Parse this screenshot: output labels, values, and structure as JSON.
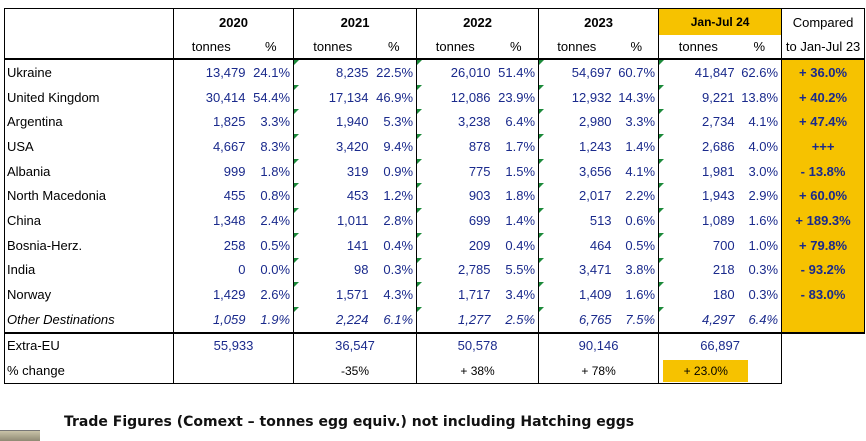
{
  "headers": {
    "years": [
      "2020",
      "2021",
      "2022",
      "2023",
      "Jan-Jul 24"
    ],
    "sub_tonnes": "tonnes",
    "sub_pct": "%",
    "compared_line1": "Compared",
    "compared_line2": "to Jan-Jul 23"
  },
  "rows": [
    {
      "country": "Ukraine",
      "v2020": "13,479",
      "p2020": "24.1%",
      "v2021": "8,235",
      "p2021": "22.5%",
      "v2022": "26,010",
      "p2022": "51.4%",
      "v2023": "54,697",
      "p2023": "60.7%",
      "v2024": "41,847",
      "p2024": "62.6%",
      "cmp": "+ 36.0%"
    },
    {
      "country": "United Kingdom",
      "v2020": "30,414",
      "p2020": "54.4%",
      "v2021": "17,134",
      "p2021": "46.9%",
      "v2022": "12,086",
      "p2022": "23.9%",
      "v2023": "12,932",
      "p2023": "14.3%",
      "v2024": "9,221",
      "p2024": "13.8%",
      "cmp": "+ 40.2%"
    },
    {
      "country": "Argentina",
      "v2020": "1,825",
      "p2020": "3.3%",
      "v2021": "1,940",
      "p2021": "5.3%",
      "v2022": "3,238",
      "p2022": "6.4%",
      "v2023": "2,980",
      "p2023": "3.3%",
      "v2024": "2,734",
      "p2024": "4.1%",
      "cmp": "+ 47.4%"
    },
    {
      "country": "USA",
      "v2020": "4,667",
      "p2020": "8.3%",
      "v2021": "3,420",
      "p2021": "9.4%",
      "v2022": "878",
      "p2022": "1.7%",
      "v2023": "1,243",
      "p2023": "1.4%",
      "v2024": "2,686",
      "p2024": "4.0%",
      "cmp": "+++"
    },
    {
      "country": "Albania",
      "v2020": "999",
      "p2020": "1.8%",
      "v2021": "319",
      "p2021": "0.9%",
      "v2022": "775",
      "p2022": "1.5%",
      "v2023": "3,656",
      "p2023": "4.1%",
      "v2024": "1,981",
      "p2024": "3.0%",
      "cmp": "- 13.8%"
    },
    {
      "country": "North Macedonia",
      "v2020": "455",
      "p2020": "0.8%",
      "v2021": "453",
      "p2021": "1.2%",
      "v2022": "903",
      "p2022": "1.8%",
      "v2023": "2,017",
      "p2023": "2.2%",
      "v2024": "1,943",
      "p2024": "2.9%",
      "cmp": "+ 60.0%"
    },
    {
      "country": "China",
      "v2020": "1,348",
      "p2020": "2.4%",
      "v2021": "1,011",
      "p2021": "2.8%",
      "v2022": "699",
      "p2022": "1.4%",
      "v2023": "513",
      "p2023": "0.6%",
      "v2024": "1,089",
      "p2024": "1.6%",
      "cmp": "+ 189.3%"
    },
    {
      "country": "Bosnia-Herz.",
      "v2020": "258",
      "p2020": "0.5%",
      "v2021": "141",
      "p2021": "0.4%",
      "v2022": "209",
      "p2022": "0.4%",
      "v2023": "464",
      "p2023": "0.5%",
      "v2024": "700",
      "p2024": "1.0%",
      "cmp": "+ 79.8%"
    },
    {
      "country": "India",
      "v2020": "0",
      "p2020": "0.0%",
      "v2021": "98",
      "p2021": "0.3%",
      "v2022": "2,785",
      "p2022": "5.5%",
      "v2023": "3,471",
      "p2023": "3.8%",
      "v2024": "218",
      "p2024": "0.3%",
      "cmp": "- 93.2%"
    },
    {
      "country": "Norway",
      "v2020": "1,429",
      "p2020": "2.6%",
      "v2021": "1,571",
      "p2021": "4.3%",
      "v2022": "1,717",
      "p2022": "3.4%",
      "v2023": "1,409",
      "p2023": "1.6%",
      "v2024": "180",
      "p2024": "0.3%",
      "cmp": "- 83.0%"
    },
    {
      "country": "Other Destinations",
      "v2020": "1,059",
      "p2020": "1.9%",
      "v2021": "2,224",
      "p2021": "6.1%",
      "v2022": "1,277",
      "p2022": "2.5%",
      "v2023": "6,765",
      "p2023": "7.5%",
      "v2024": "4,297",
      "p2024": "6.4%",
      "cmp": ""
    }
  ],
  "totals": {
    "label": "Extra-EU",
    "v2020": "55,933",
    "v2021": "36,547",
    "v2022": "50,578",
    "v2023": "90,146",
    "v2024": "66,897"
  },
  "change": {
    "label": "% change",
    "c2021": "-35%",
    "c2022": "+ 38%",
    "c2023": "+ 78%",
    "c2024": "+ 23.0%"
  },
  "footer": "Trade Figures (Comext – tonnes egg equiv.) not including Hatching eggs",
  "colors": {
    "highlight": "#f6c200",
    "number_blue": "#1a2a8c",
    "flag_green": "#1c8a3a"
  }
}
